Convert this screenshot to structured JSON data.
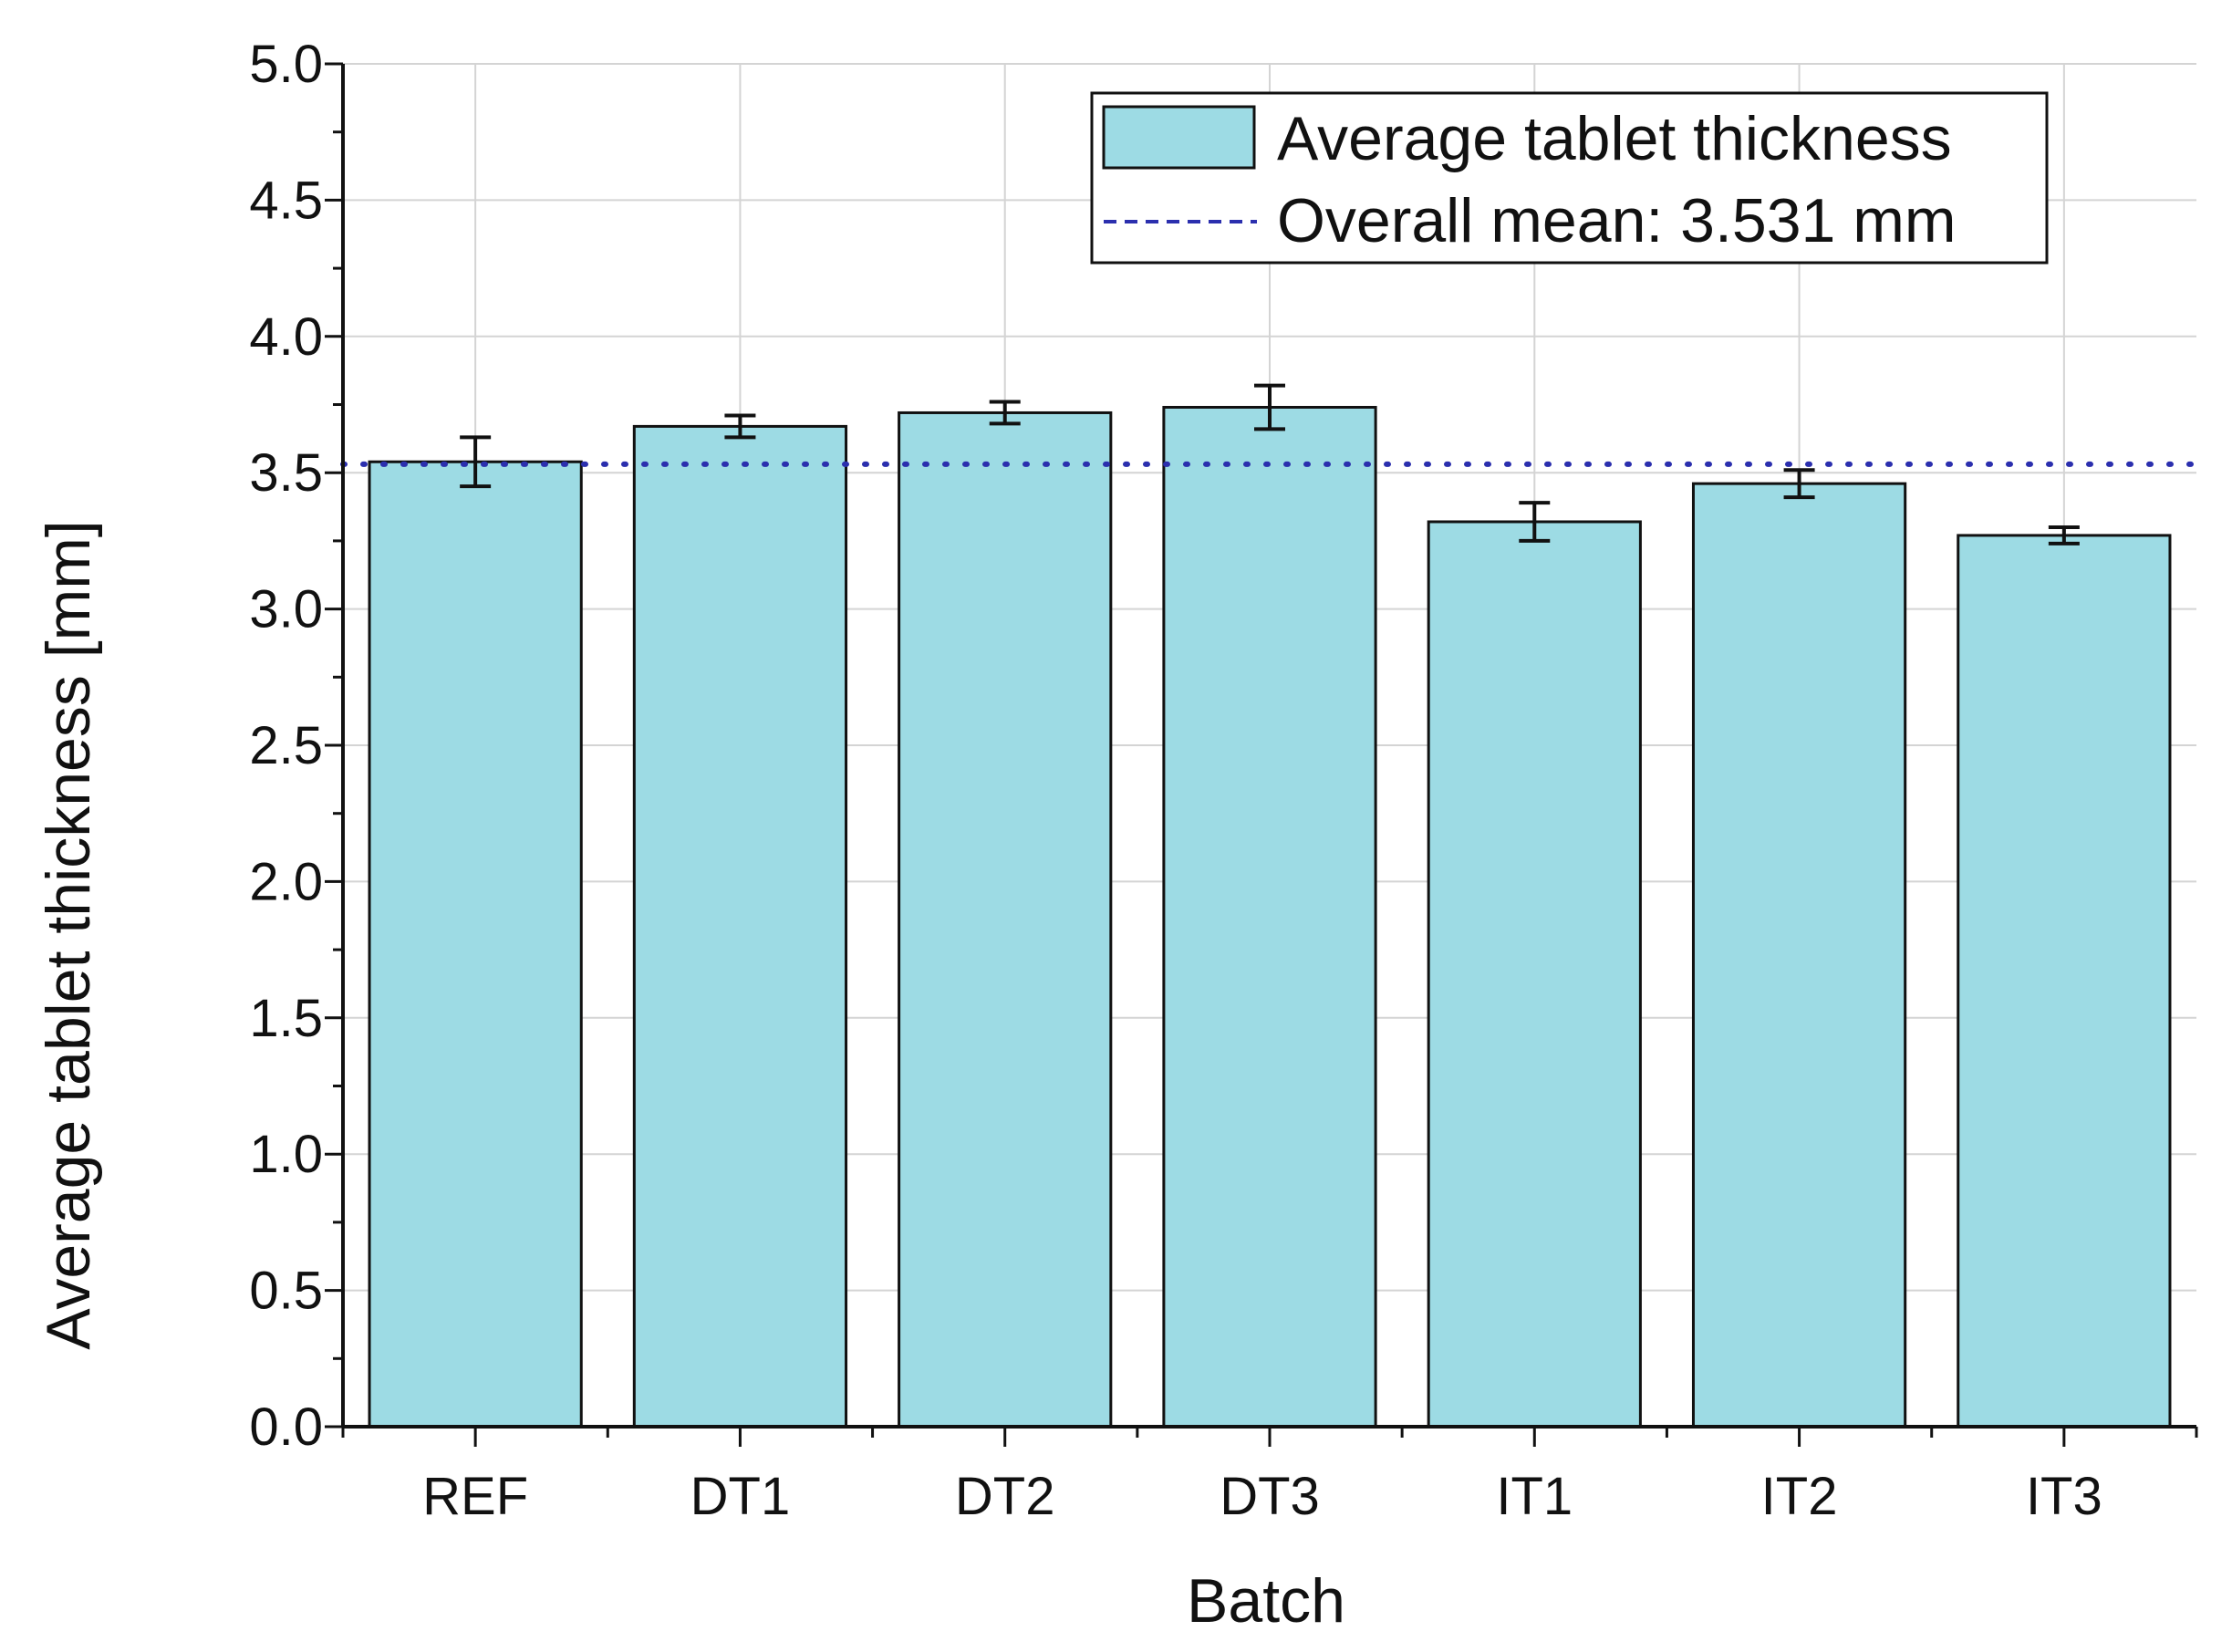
{
  "chart_data": {
    "type": "bar",
    "title": "",
    "xlabel": "Batch",
    "ylabel": "Average tablet thickness [mm]",
    "ylim": [
      0,
      5
    ],
    "yticks": [
      "0.0",
      "0.5",
      "1.0",
      "1.5",
      "2.0",
      "2.5",
      "3.0",
      "3.5",
      "4.0",
      "4.5",
      "5.0"
    ],
    "categories": [
      "REF",
      "DT1",
      "DT2",
      "DT3",
      "IT1",
      "IT2",
      "IT3"
    ],
    "values": [
      3.54,
      3.67,
      3.72,
      3.74,
      3.32,
      3.46,
      3.27
    ],
    "errors": [
      0.09,
      0.04,
      0.04,
      0.08,
      0.07,
      0.05,
      0.03
    ],
    "reference_line": {
      "value": 3.531,
      "style": "dotted"
    },
    "legend": {
      "position": "top-right",
      "entries": [
        "Average tablet thickness",
        "Overall mean: 3.531 mm"
      ]
    },
    "grid": true,
    "colors": {
      "bar_fill": "#9ddbe4",
      "bar_stroke": "#111111",
      "mean_line": "#2b2fae",
      "grid": "#d4d4d4"
    }
  }
}
